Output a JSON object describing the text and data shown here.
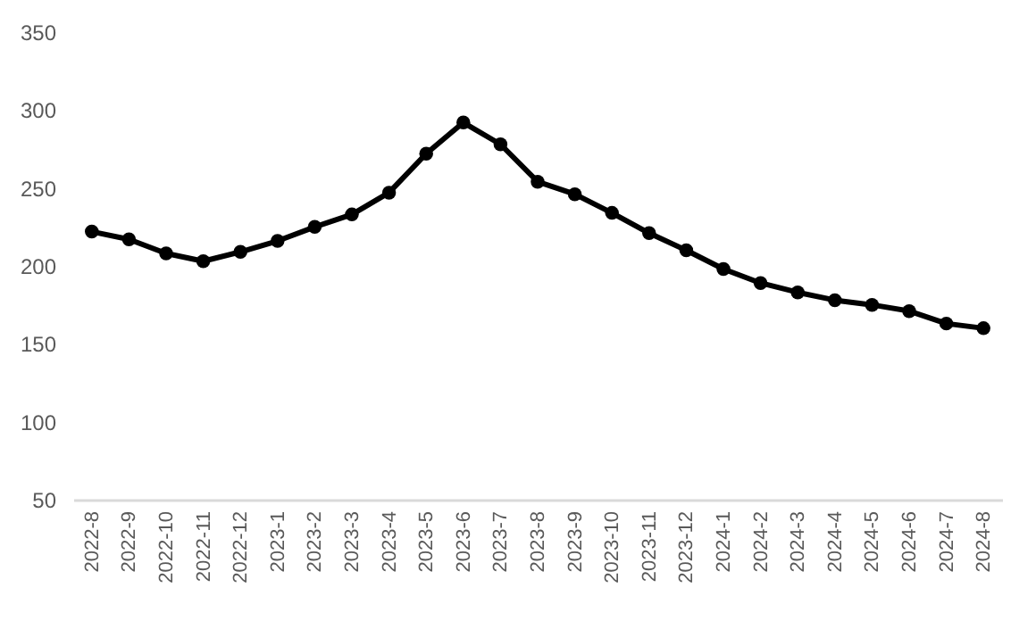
{
  "chart_data": {
    "type": "line",
    "categories": [
      "2022-8",
      "2022-9",
      "2022-10",
      "2022-11",
      "2022-12",
      "2023-1",
      "2023-2",
      "2023-3",
      "2023-4",
      "2023-5",
      "2023-6",
      "2023-7",
      "2023-8",
      "2023-9",
      "2023-10",
      "2023-11",
      "2023-12",
      "2024-1",
      "2024-2",
      "2024-3",
      "2024-4",
      "2024-5",
      "2024-6",
      "2024-7",
      "2024-8"
    ],
    "series": [
      {
        "color": "#000000",
        "values": [
          222,
          217,
          208,
          203,
          209,
          216,
          225,
          233,
          247,
          272,
          292,
          278,
          254,
          246,
          234,
          221,
          210,
          198,
          189,
          183,
          178,
          175,
          171,
          163,
          160
        ]
      }
    ],
    "ylim": [
      50,
      350
    ],
    "yticks": [
      50,
      100,
      150,
      200,
      250,
      300,
      350
    ],
    "grid": false,
    "marker": "circle",
    "line_style": "solid"
  }
}
